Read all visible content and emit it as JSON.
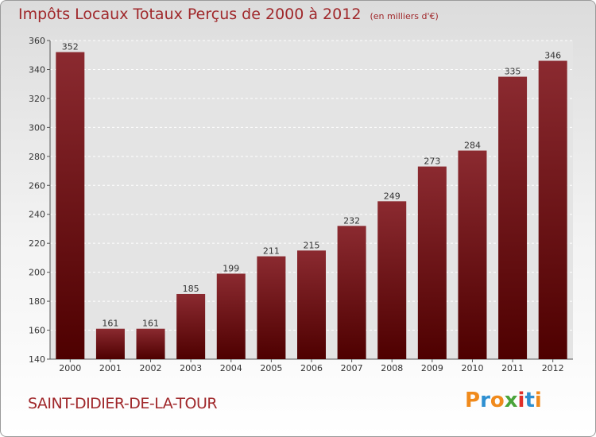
{
  "title": "Impôts Locaux Totaux Perçus de 2000 à 2012",
  "subtitle": "(en milliers d'€)",
  "town": "SAINT-DIDIER-DE-LA-TOUR",
  "brand": {
    "text": "Proxiti",
    "colors": [
      "#f08a1c",
      "#2e8fd1",
      "#f08a1c",
      "#4aa43a",
      "#e0302a",
      "#2e8fd1",
      "#f08a1c"
    ]
  },
  "chart_data": {
    "type": "bar",
    "categories": [
      "2000",
      "2001",
      "2002",
      "2003",
      "2004",
      "2005",
      "2006",
      "2007",
      "2008",
      "2009",
      "2010",
      "2011",
      "2012"
    ],
    "values": [
      352,
      161,
      161,
      185,
      199,
      211,
      215,
      232,
      249,
      273,
      284,
      335,
      346
    ],
    "yticks": [
      140,
      160,
      180,
      200,
      220,
      240,
      260,
      280,
      300,
      320,
      340,
      360
    ],
    "ylim": [
      140,
      360
    ],
    "grid": "horizontal dashed",
    "bar_color_top": "#8b2a30",
    "bar_color_bottom": "#4e0000"
  }
}
